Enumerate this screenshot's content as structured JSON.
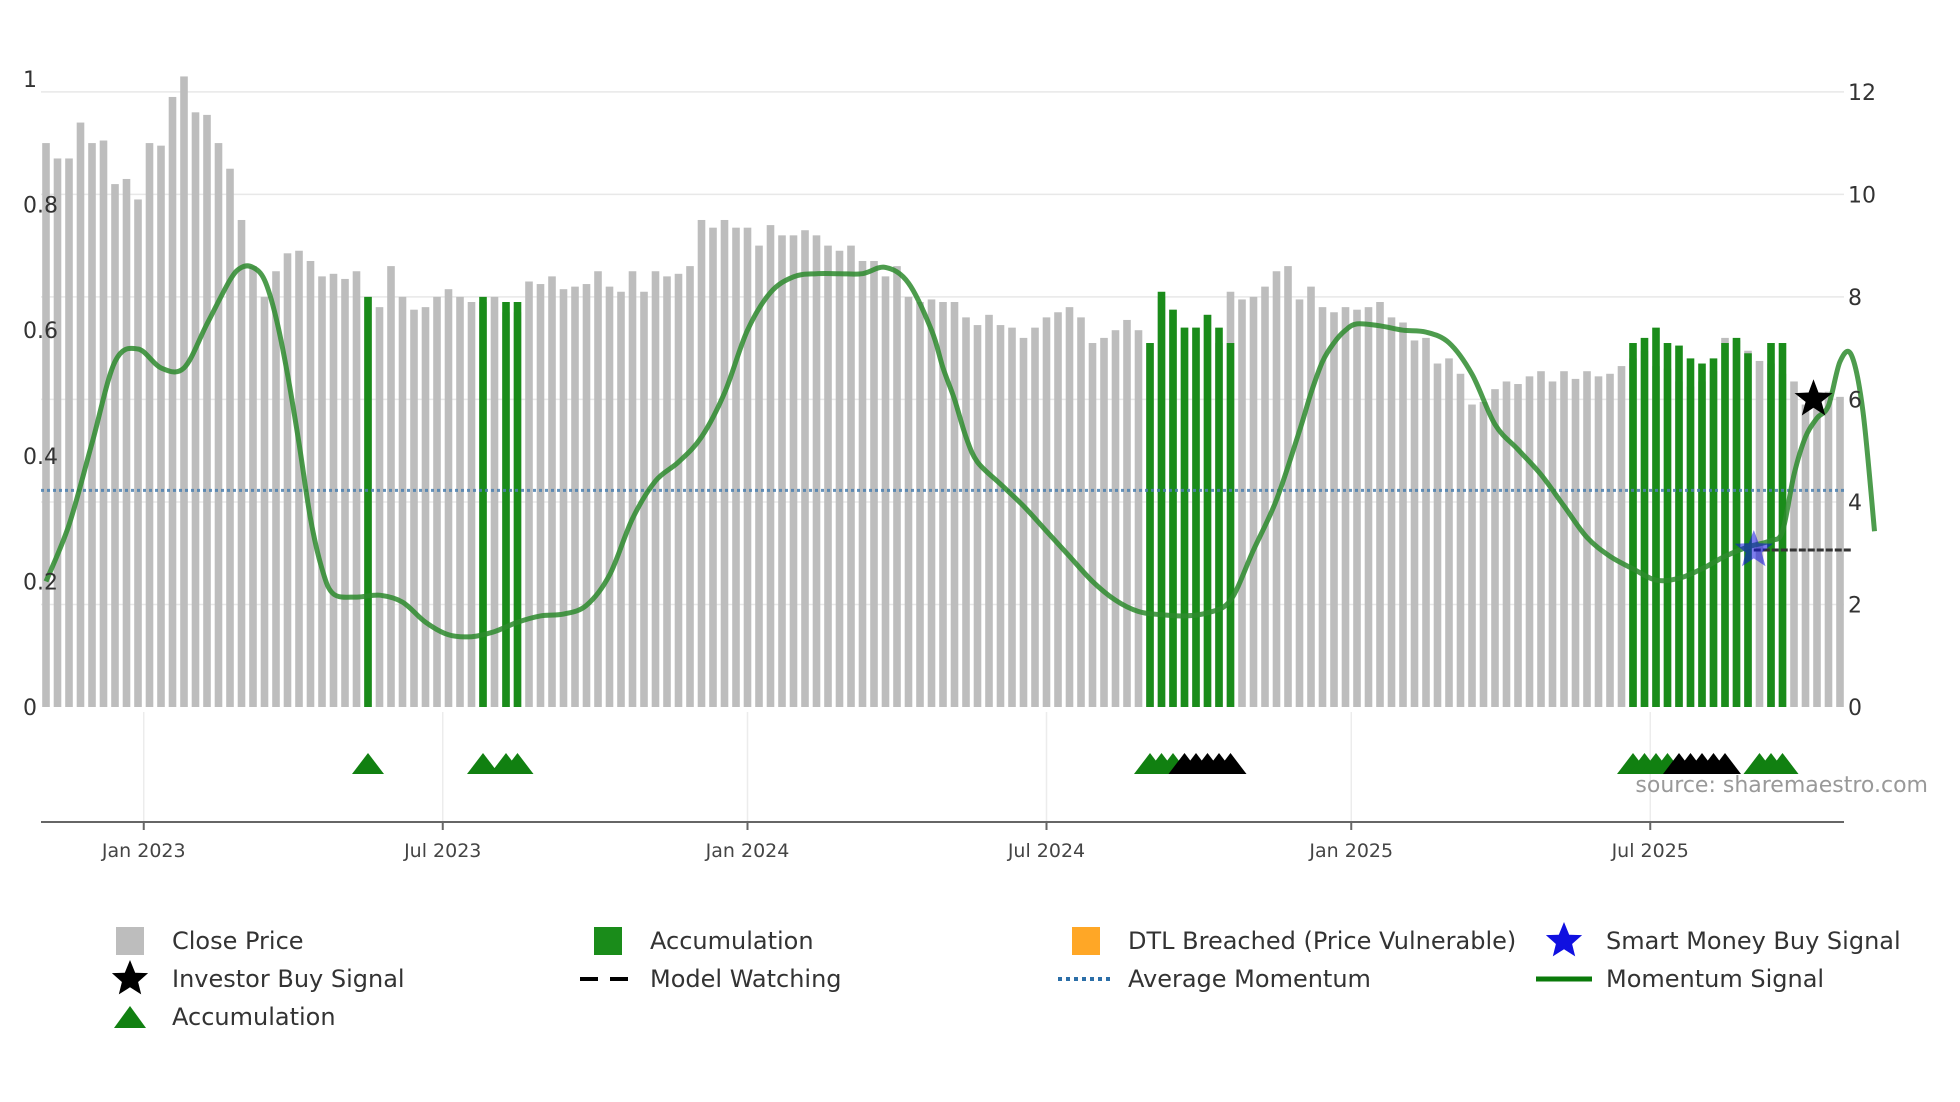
{
  "source_text": "source: sharemaestro.com",
  "colors": {
    "close_price": "#bdbdbd",
    "accumulation_bar": "#1a8c1a",
    "accumulation_marker": "#118011",
    "dtl": "#ffa726",
    "smart_money": "#1010e0",
    "investor_buy": "#000000",
    "momentum": "#2e8b2e",
    "average_momentum": "#4a7fb0",
    "model_watching": "#000000"
  },
  "legend": [
    {
      "key": "close_price",
      "label": "Close Price",
      "symbol": "square"
    },
    {
      "key": "accumulation_bar",
      "label": "Accumulation",
      "symbol": "square"
    },
    {
      "key": "dtl",
      "label": "DTL Breached (Price Vulnerable)",
      "symbol": "square"
    },
    {
      "key": "smart_money",
      "label": "Smart Money Buy Signal",
      "symbol": "star"
    },
    {
      "key": "investor_buy",
      "label": "Investor Buy Signal",
      "symbol": "star"
    },
    {
      "key": "model_watching",
      "label": "Model Watching",
      "symbol": "dash"
    },
    {
      "key": "average_momentum",
      "label": "Average Momentum",
      "symbol": "dot"
    },
    {
      "key": "momentum",
      "label": "Momentum Signal",
      "symbol": "line"
    },
    {
      "key": "accumulation_marker",
      "label": "Accumulation",
      "symbol": "triangle"
    }
  ],
  "chart_data": {
    "type": "bar",
    "title": "",
    "left_axis": {
      "range": [
        0,
        1
      ],
      "ticks": [
        "0",
        "0.2",
        "0.4",
        "0.6",
        "0.8",
        "1"
      ],
      "tick_values": [
        0,
        0.2,
        0.4,
        0.6,
        0.8,
        1
      ]
    },
    "right_axis": {
      "range": [
        0,
        12
      ],
      "ticks": [
        "0",
        "2",
        "4",
        "6",
        "8",
        "10",
        "12"
      ],
      "tick_values": [
        0,
        2,
        4,
        6,
        8,
        10,
        12
      ]
    },
    "x_ticks": [
      {
        "label": "Jan 2023",
        "week": 8.5
      },
      {
        "label": "Jul 2023",
        "week": 34.5
      },
      {
        "label": "Jan 2024",
        "week": 61
      },
      {
        "label": "Jul 2024",
        "week": 87
      },
      {
        "label": "Jan 2025",
        "week": 113.5
      },
      {
        "label": "Jul 2025",
        "week": 139.5
      }
    ],
    "num_weeks": 158,
    "close_price": [
      11.0,
      10.7,
      10.7,
      11.4,
      11.0,
      11.05,
      10.2,
      10.3,
      9.9,
      11.0,
      10.95,
      11.9,
      12.3,
      11.6,
      11.55,
      11.0,
      10.5,
      9.5,
      8.6,
      8.0,
      8.5,
      8.85,
      8.9,
      8.7,
      8.4,
      8.45,
      8.35,
      8.5,
      8.0,
      7.8,
      8.6,
      8.0,
      7.75,
      7.8,
      8.0,
      8.15,
      8.0,
      7.9,
      7.9,
      8.0,
      7.7,
      7.7,
      8.3,
      8.25,
      8.4,
      8.15,
      8.2,
      8.25,
      8.5,
      8.2,
      8.1,
      8.5,
      8.1,
      8.5,
      8.4,
      8.45,
      8.6,
      9.5,
      9.35,
      9.5,
      9.35,
      9.35,
      9.0,
      9.4,
      9.2,
      9.2,
      9.3,
      9.2,
      9.0,
      8.9,
      9.0,
      8.7,
      8.7,
      8.4,
      8.6,
      8.0,
      7.9,
      7.95,
      7.9,
      7.9,
      7.6,
      7.45,
      7.65,
      7.45,
      7.4,
      7.2,
      7.4,
      7.6,
      7.7,
      7.8,
      7.6,
      7.1,
      7.2,
      7.35,
      7.55,
      7.35,
      7.1,
      8.0,
      7.75,
      7.4,
      7.4,
      7.65,
      7.1,
      8.1,
      7.95,
      8.0,
      8.2,
      8.5,
      8.6,
      7.95,
      8.2,
      7.8,
      7.7,
      7.8,
      7.75,
      7.8,
      7.9,
      7.6,
      7.5,
      7.15,
      7.2,
      6.7,
      6.8,
      6.5,
      5.9,
      5.95,
      6.2,
      6.35,
      6.3,
      6.45,
      6.55,
      6.35,
      6.55,
      6.4,
      6.55,
      6.45,
      6.5,
      6.65,
      6.8,
      6.95,
      6.65,
      6.6,
      6.35,
      6.25,
      6.35,
      6.55,
      7.2,
      7.15,
      6.95,
      6.75,
      6.7,
      6.5,
      6.35,
      5.9,
      5.95,
      6.15,
      6.05
    ],
    "accumulation_weeks": [
      28,
      38,
      40,
      41,
      96,
      97,
      98,
      99,
      100,
      101,
      102,
      103,
      138,
      139,
      140,
      141,
      142,
      143,
      144,
      145,
      146,
      147,
      148,
      150,
      151
    ],
    "accumulation_heights": [
      8.0,
      8.0,
      7.9,
      7.9,
      7.1,
      8.1,
      7.75,
      7.4,
      7.4,
      7.65,
      7.4,
      7.1,
      7.1,
      7.2,
      7.4,
      7.1,
      7.05,
      6.8,
      6.7,
      6.8,
      7.1,
      7.2,
      6.9,
      7.1,
      7.1
    ],
    "accumulation_markers": [
      28,
      38,
      40,
      41,
      96,
      97,
      98,
      138,
      139,
      140,
      141,
      149,
      150,
      151
    ],
    "investor_markers": [
      99,
      100,
      101,
      102,
      103,
      142,
      143,
      144,
      145,
      146
    ],
    "momentum_points": [
      [
        0,
        0.2
      ],
      [
        2,
        0.29
      ],
      [
        4,
        0.42
      ],
      [
        6,
        0.55
      ],
      [
        8,
        0.57
      ],
      [
        10,
        0.54
      ],
      [
        12,
        0.54
      ],
      [
        14,
        0.61
      ],
      [
        16,
        0.68
      ],
      [
        17,
        0.7
      ],
      [
        18,
        0.7
      ],
      [
        19,
        0.68
      ],
      [
        20,
        0.62
      ],
      [
        21,
        0.53
      ],
      [
        22,
        0.42
      ],
      [
        23,
        0.3
      ],
      [
        24,
        0.22
      ],
      [
        25,
        0.18
      ],
      [
        27,
        0.175
      ],
      [
        29,
        0.178
      ],
      [
        31,
        0.167
      ],
      [
        33,
        0.135
      ],
      [
        35,
        0.115
      ],
      [
        37,
        0.112
      ],
      [
        39,
        0.12
      ],
      [
        41,
        0.135
      ],
      [
        43,
        0.145
      ],
      [
        45,
        0.148
      ],
      [
        47,
        0.162
      ],
      [
        49,
        0.21
      ],
      [
        51,
        0.3
      ],
      [
        53,
        0.36
      ],
      [
        55,
        0.39
      ],
      [
        57,
        0.43
      ],
      [
        59,
        0.5
      ],
      [
        61,
        0.6
      ],
      [
        63,
        0.66
      ],
      [
        65,
        0.685
      ],
      [
        67,
        0.69
      ],
      [
        69,
        0.69
      ],
      [
        71,
        0.69
      ],
      [
        73,
        0.7
      ],
      [
        75,
        0.675
      ],
      [
        77,
        0.6
      ],
      [
        78,
        0.54
      ],
      [
        79,
        0.49
      ],
      [
        80,
        0.43
      ],
      [
        81,
        0.39
      ],
      [
        83,
        0.355
      ],
      [
        85,
        0.32
      ],
      [
        87,
        0.28
      ],
      [
        89,
        0.24
      ],
      [
        91,
        0.2
      ],
      [
        93,
        0.17
      ],
      [
        95,
        0.152
      ],
      [
        97,
        0.147
      ],
      [
        99,
        0.145
      ],
      [
        101,
        0.15
      ],
      [
        103,
        0.17
      ],
      [
        105,
        0.25
      ],
      [
        107,
        0.33
      ],
      [
        109,
        0.44
      ],
      [
        110,
        0.5
      ],
      [
        111,
        0.55
      ],
      [
        112,
        0.58
      ],
      [
        113,
        0.6
      ],
      [
        114,
        0.61
      ],
      [
        116,
        0.607
      ],
      [
        118,
        0.6
      ],
      [
        120,
        0.597
      ],
      [
        122,
        0.58
      ],
      [
        124,
        0.53
      ],
      [
        126,
        0.45
      ],
      [
        128,
        0.41
      ],
      [
        130,
        0.37
      ],
      [
        132,
        0.32
      ],
      [
        134,
        0.27
      ],
      [
        136,
        0.24
      ],
      [
        138,
        0.22
      ],
      [
        140,
        0.202
      ],
      [
        142,
        0.205
      ],
      [
        144,
        0.22
      ],
      [
        146,
        0.24
      ],
      [
        148,
        0.255
      ],
      [
        150,
        0.265
      ],
      [
        151,
        0.28
      ],
      [
        152,
        0.37
      ],
      [
        153,
        0.43
      ],
      [
        154,
        0.46
      ],
      [
        155,
        0.48
      ],
      [
        156,
        0.55
      ],
      [
        157,
        0.56
      ],
      [
        158,
        0.47
      ],
      [
        159,
        0.28
      ]
    ],
    "average_momentum": 0.345,
    "investor_buy_signal": {
      "week": 153.7,
      "value": 0.49
    },
    "smart_money_buy_signal": {
      "week": 148.5,
      "value": 0.25
    },
    "model_watching": {
      "week_start": 148.5,
      "week_end": 157,
      "value": 0.25
    }
  }
}
